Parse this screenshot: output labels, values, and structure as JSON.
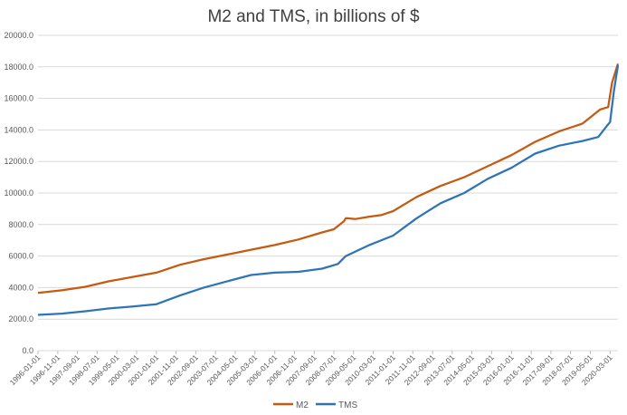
{
  "chart_data": {
    "type": "line",
    "title": "M2 and TMS, in billions of $",
    "xlabel": "",
    "ylabel": "",
    "ylim": [
      0,
      20000
    ],
    "y_ticks": [
      "0.0",
      "2000.0",
      "4000.0",
      "6000.0",
      "8000.0",
      "10000.0",
      "12000.0",
      "14000.0",
      "16000.0",
      "18000.0",
      "20000.0"
    ],
    "x_tick_labels": [
      "1996-01-01",
      "1996-11-01",
      "1997-09-01",
      "1998-07-01",
      "1999-05-01",
      "2000-03-01",
      "2001-01-01",
      "2001-11-01",
      "2002-09-01",
      "2003-07-01",
      "2004-05-01",
      "2005-03-01",
      "2006-01-01",
      "2006-11-01",
      "2007-09-01",
      "2008-07-01",
      "2009-05-01",
      "2010-03-01",
      "2011-01-01",
      "2011-11-01",
      "2012-09-01",
      "2013-07-01",
      "2014-05-01",
      "2015-03-01",
      "2016-01-01",
      "2016-11-01",
      "2017-09-01",
      "2018-07-01",
      "2019-05-01",
      "2020-03-01"
    ],
    "x_start": "1996-01-01",
    "x_end": "2020-07-01",
    "grid": "horizontal",
    "legend_position": "bottom",
    "series": [
      {
        "name": "M2",
        "color": "#C55A11",
        "points": [
          [
            "1996-01-01",
            3660
          ],
          [
            "1997-01-01",
            3830
          ],
          [
            "1998-01-01",
            4050
          ],
          [
            "1999-01-01",
            4400
          ],
          [
            "2000-01-01",
            4680
          ],
          [
            "2001-01-01",
            4950
          ],
          [
            "2002-01-01",
            5450
          ],
          [
            "2003-01-01",
            5800
          ],
          [
            "2004-01-01",
            6100
          ],
          [
            "2005-01-01",
            6400
          ],
          [
            "2006-01-01",
            6700
          ],
          [
            "2007-01-01",
            7050
          ],
          [
            "2008-01-01",
            7500
          ],
          [
            "2008-07-01",
            7700
          ],
          [
            "2008-12-01",
            8200
          ],
          [
            "2009-01-01",
            8400
          ],
          [
            "2009-06-01",
            8350
          ],
          [
            "2010-01-01",
            8500
          ],
          [
            "2010-07-01",
            8600
          ],
          [
            "2011-01-01",
            8850
          ],
          [
            "2011-07-01",
            9300
          ],
          [
            "2012-01-01",
            9750
          ],
          [
            "2013-01-01",
            10450
          ],
          [
            "2014-01-01",
            11000
          ],
          [
            "2015-01-01",
            11700
          ],
          [
            "2016-01-01",
            12400
          ],
          [
            "2017-01-01",
            13250
          ],
          [
            "2018-01-01",
            13900
          ],
          [
            "2019-01-01",
            14400
          ],
          [
            "2019-10-01",
            15300
          ],
          [
            "2020-02-01",
            15450
          ],
          [
            "2020-04-01",
            17000
          ],
          [
            "2020-07-01",
            18200
          ]
        ]
      },
      {
        "name": "TMS",
        "color": "#2E75B6",
        "points": [
          [
            "1996-01-01",
            2270
          ],
          [
            "1997-01-01",
            2350
          ],
          [
            "1998-01-01",
            2500
          ],
          [
            "1999-01-01",
            2680
          ],
          [
            "2000-01-01",
            2800
          ],
          [
            "2001-01-01",
            2950
          ],
          [
            "2002-01-01",
            3500
          ],
          [
            "2003-01-01",
            4000
          ],
          [
            "2004-01-01",
            4400
          ],
          [
            "2005-01-01",
            4800
          ],
          [
            "2006-01-01",
            4950
          ],
          [
            "2007-01-01",
            5000
          ],
          [
            "2008-01-01",
            5200
          ],
          [
            "2008-09-01",
            5500
          ],
          [
            "2009-01-01",
            6000
          ],
          [
            "2010-01-01",
            6700
          ],
          [
            "2011-01-01",
            7300
          ],
          [
            "2012-01-01",
            8400
          ],
          [
            "2013-01-01",
            9350
          ],
          [
            "2014-01-01",
            10000
          ],
          [
            "2015-01-01",
            10900
          ],
          [
            "2016-01-01",
            11600
          ],
          [
            "2017-01-01",
            12500
          ],
          [
            "2018-01-01",
            13000
          ],
          [
            "2019-01-01",
            13300
          ],
          [
            "2019-09-01",
            13550
          ],
          [
            "2020-01-01",
            14200
          ],
          [
            "2020-03-01",
            14500
          ],
          [
            "2020-05-01",
            16500
          ],
          [
            "2020-07-01",
            18100
          ]
        ]
      }
    ]
  }
}
